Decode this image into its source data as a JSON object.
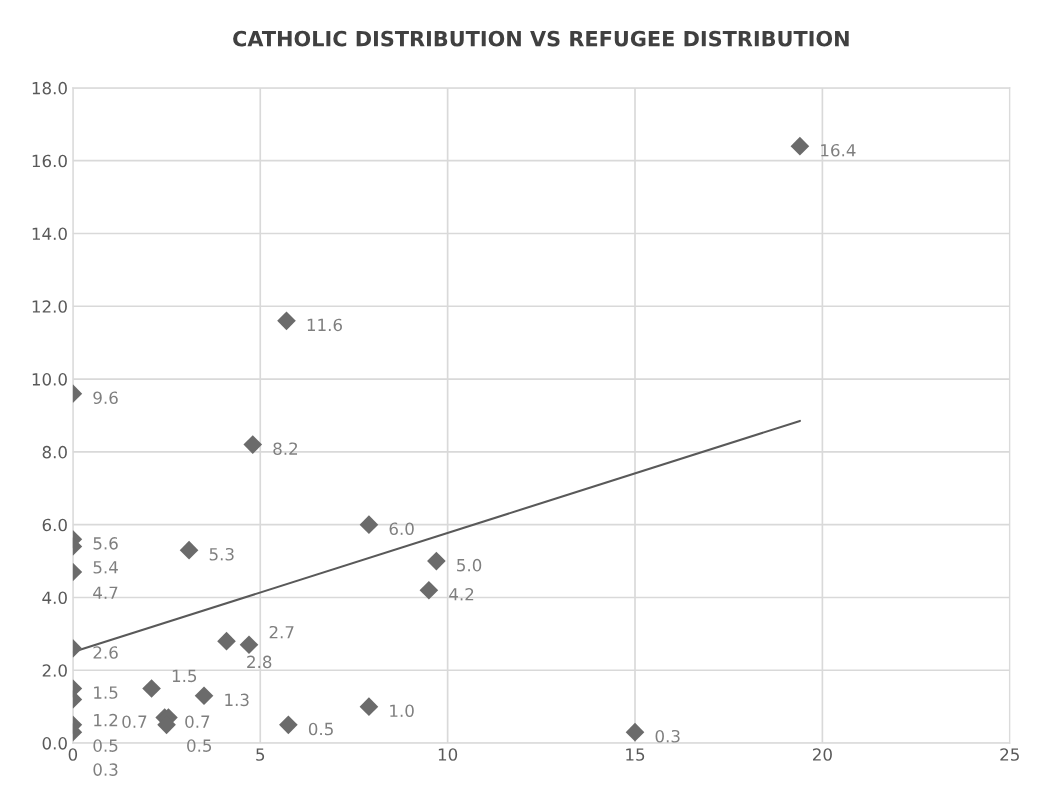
{
  "chart_data": {
    "type": "scatter",
    "title": "CATHOLIC DISTRIBUTION VS REFUGEE DISTRIBUTION",
    "xlim": [
      0,
      25
    ],
    "xticks": [
      0,
      5,
      10,
      15,
      20,
      25
    ],
    "ylim": [
      0,
      18
    ],
    "yticks": [
      {
        "value": 0,
        "label": "0.0"
      },
      {
        "value": 2,
        "label": "2.0"
      },
      {
        "value": 4,
        "label": "4.0"
      },
      {
        "value": 6,
        "label": "6.0"
      },
      {
        "value": 8,
        "label": "8.0"
      },
      {
        "value": 10,
        "label": "10.0"
      },
      {
        "value": 12,
        "label": "12.0"
      },
      {
        "value": 14,
        "label": "14.0"
      },
      {
        "value": 16,
        "label": "16.0"
      },
      {
        "value": 18,
        "label": "18.0"
      }
    ],
    "grid": true,
    "series": [
      {
        "marker": "diamond",
        "color": "#6b6b6b",
        "x": [
          19.4,
          5.7,
          0,
          4.8,
          7.9,
          0,
          0,
          3.1,
          9.7,
          0,
          9.5,
          0,
          4.1,
          4.7,
          0,
          2.1,
          0,
          3.5,
          7.9,
          2.45,
          2.55,
          2.5,
          0,
          5.75,
          0,
          15.0
        ],
        "values": [
          16.4,
          11.6,
          9.6,
          8.2,
          6.0,
          5.6,
          5.4,
          5.3,
          5.0,
          4.7,
          4.2,
          2.6,
          2.8,
          2.7,
          1.5,
          1.5,
          1.2,
          1.3,
          1.0,
          0.7,
          0.7,
          0.5,
          0.5,
          0.5,
          0.3,
          0.3
        ],
        "value_labels": [
          "16.4",
          "11.6",
          "9.6",
          "8.2",
          "6.0",
          "5.6",
          "5.4",
          "5.3",
          "5.0",
          "4.7",
          "4.2",
          "2.6",
          "2.8",
          "2.7",
          "1.5",
          "1.5",
          "1.2",
          "1.3",
          "1.0",
          "0.7",
          "0.7",
          "0.5",
          "0.5",
          "0.5",
          "0.3",
          "0.3"
        ]
      },
      {
        "type": "line",
        "color": "#595959",
        "x": [
          0,
          19.4
        ],
        "values": [
          2.5,
          8.85
        ]
      }
    ]
  }
}
